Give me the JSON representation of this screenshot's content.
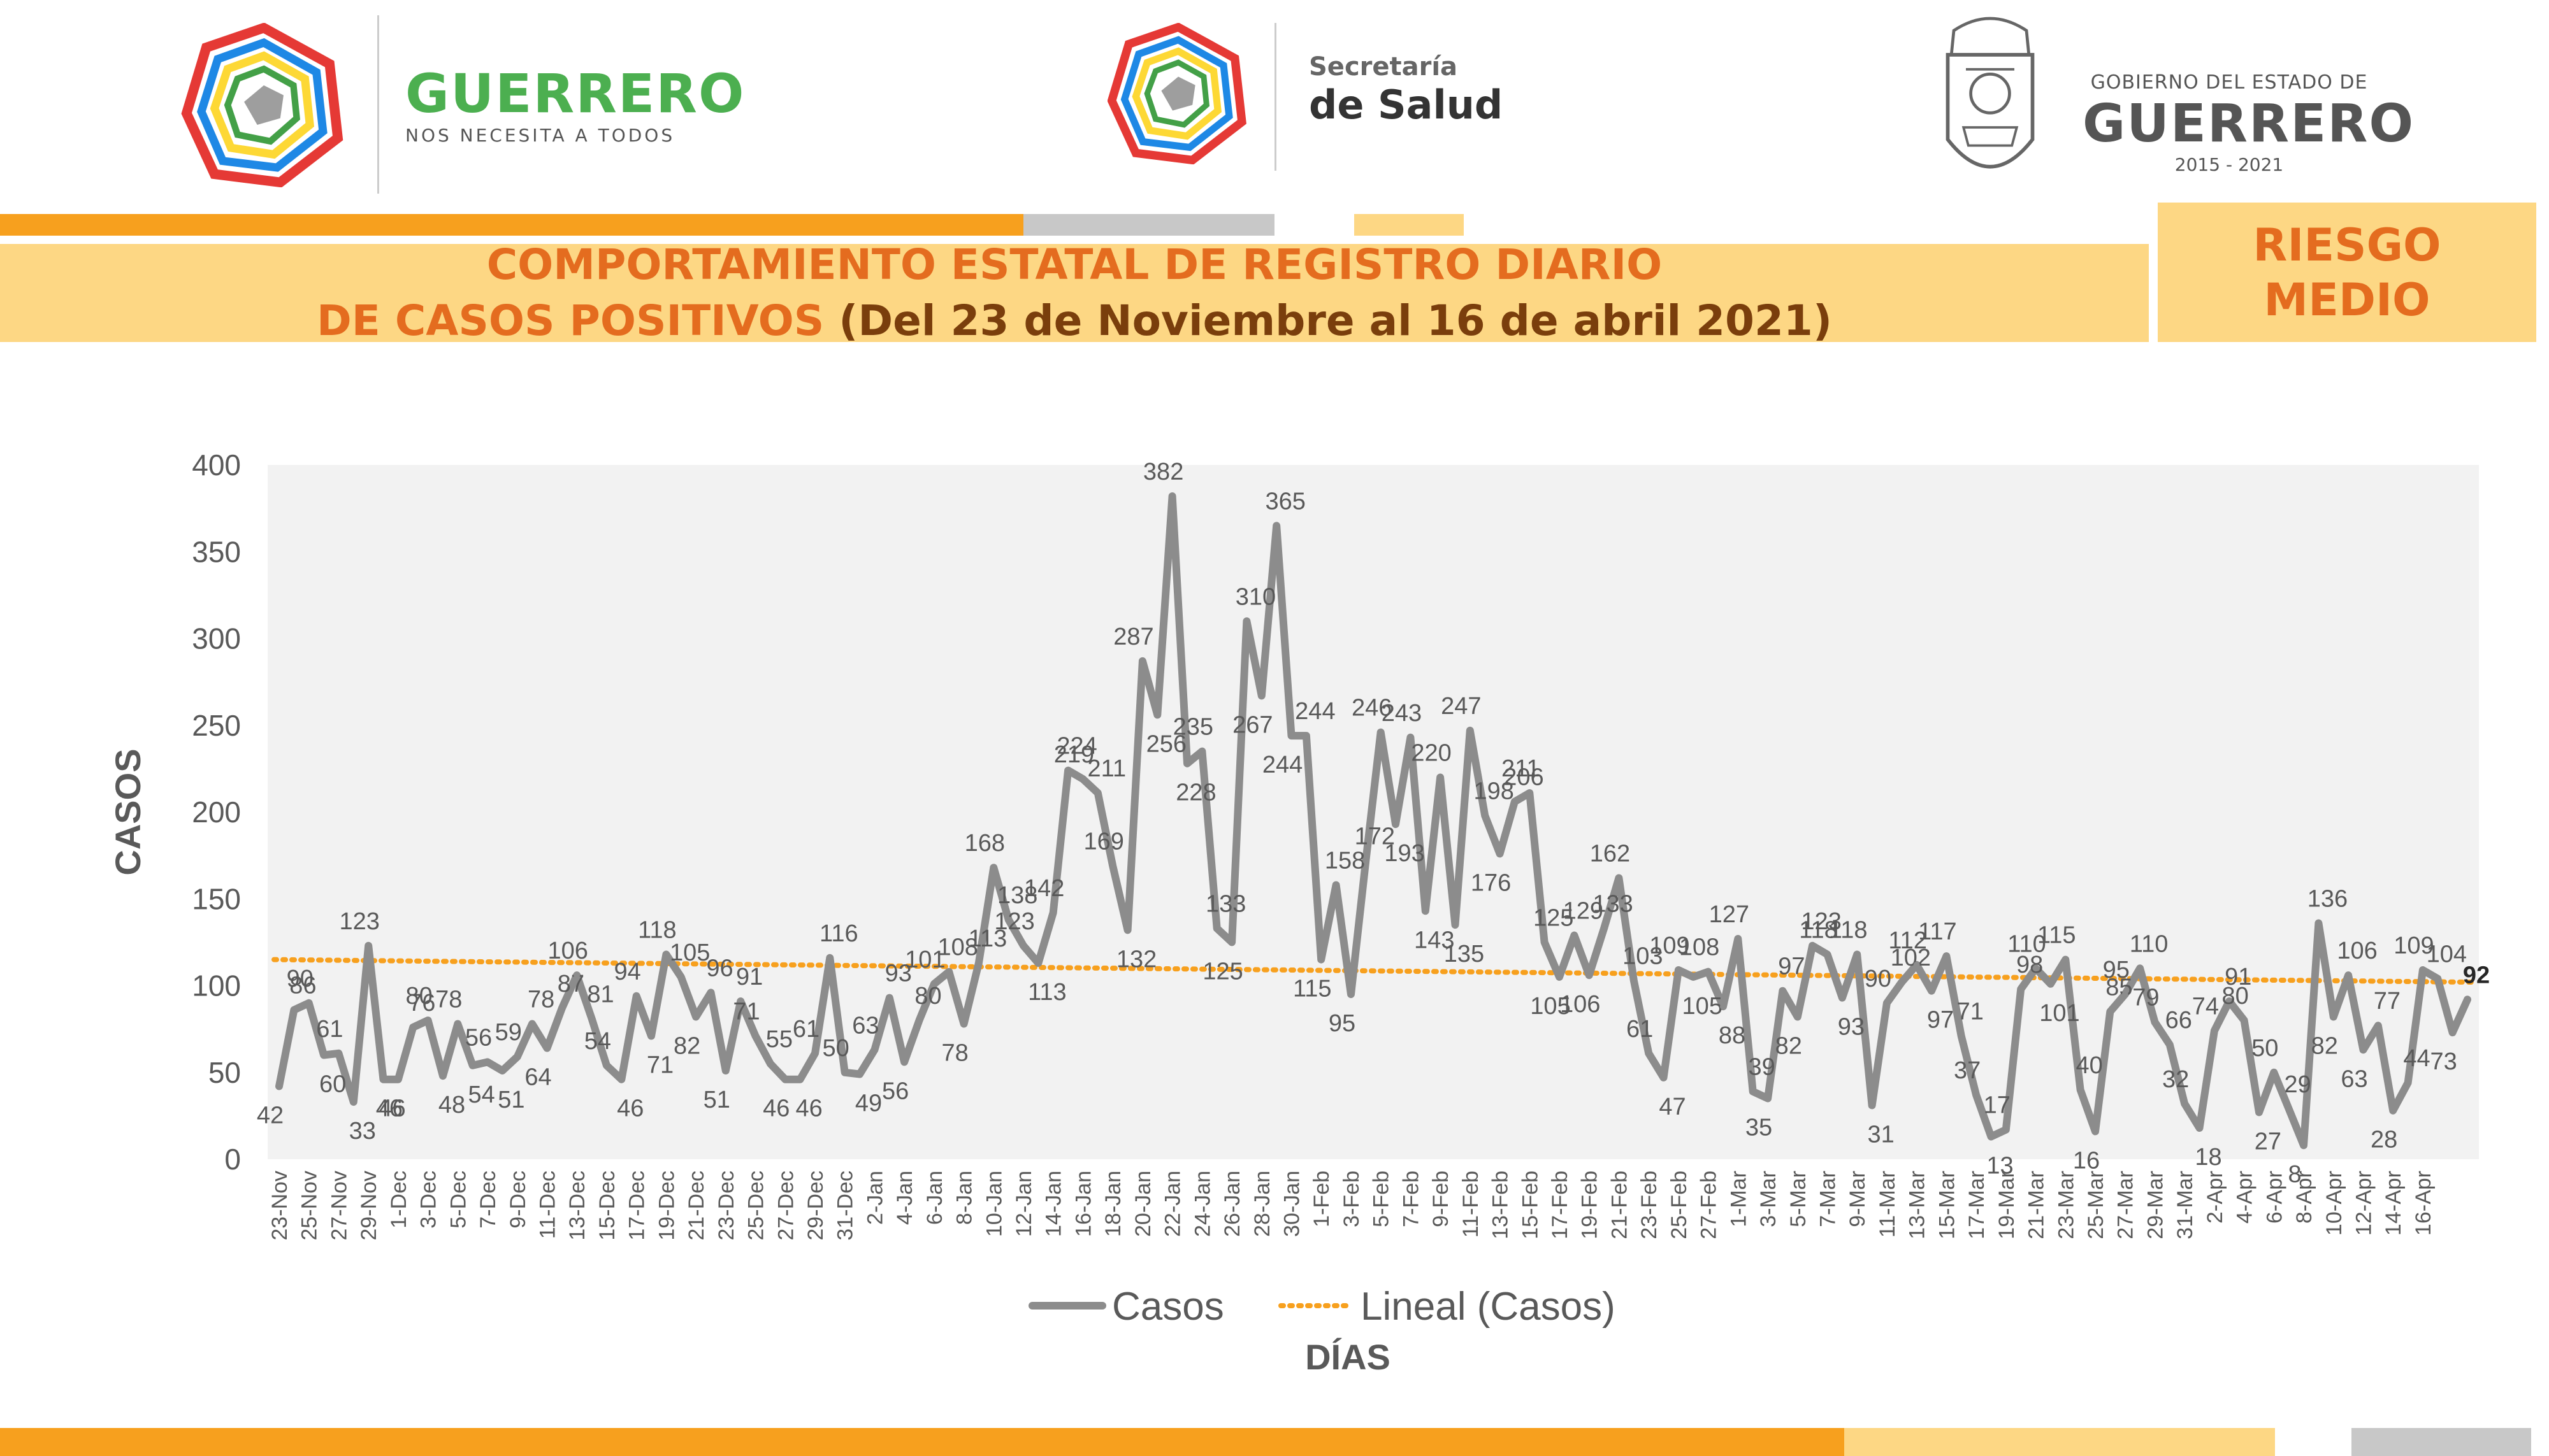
{
  "header": {
    "logo1_line1": "GUERRERO",
    "logo1_line2": "NOS NECESITA A TODOS",
    "logo2_line1": "Secretaría",
    "logo2_line2": "de Salud",
    "logo3_line1": "GOBIERNO DEL ESTADO DE",
    "logo3_line2": "GUERRERO",
    "logo3_line3": "2015 - 2021"
  },
  "title": {
    "line1": "COMPORTAMIENTO ESTATAL DE REGISTRO DIARIO",
    "line2_part1": "DE CASOS POSITIVOS",
    "line2_part2": "(Del 23 de Noviembre al 16 de abril 2021)"
  },
  "risk": {
    "line1": "RIESGO",
    "line2": "MEDIO"
  },
  "colors": {
    "orange": "#F7A01E",
    "title_orange": "#E46C1F",
    "yellow": "#FDD784",
    "line_gray": "#8C8C8C"
  },
  "chart_data": {
    "type": "line",
    "ylabel": "CASOS",
    "xlabel": "DÍAS",
    "ylim": [
      0,
      400
    ],
    "yticks": [
      0,
      50,
      100,
      150,
      200,
      250,
      300,
      350,
      400
    ],
    "legend": [
      "Casos",
      "Lineal (Casos)"
    ],
    "legend_position": "bottom",
    "trend": {
      "name": "Lineal (Casos)",
      "start": 115,
      "end": 102
    },
    "x_tick_labels": [
      "23-Nov",
      "25-Nov",
      "27-Nov",
      "29-Nov",
      "1-Dec",
      "3-Dec",
      "5-Dec",
      "7-Dec",
      "9-Dec",
      "11-Dec",
      "13-Dec",
      "15-Dec",
      "17-Dec",
      "19-Dec",
      "21-Dec",
      "23-Dec",
      "25-Dec",
      "27-Dec",
      "29-Dec",
      "31-Dec",
      "2-Jan",
      "4-Jan",
      "6-Jan",
      "8-Jan",
      "10-Jan",
      "12-Jan",
      "14-Jan",
      "16-Jan",
      "18-Jan",
      "20-Jan",
      "22-Jan",
      "24-Jan",
      "26-Jan",
      "28-Jan",
      "30-Jan",
      "1-Feb",
      "3-Feb",
      "5-Feb",
      "7-Feb",
      "9-Feb",
      "11-Feb",
      "13-Feb",
      "15-Feb",
      "17-Feb",
      "19-Feb",
      "21-Feb",
      "23-Feb",
      "25-Feb",
      "27-Feb",
      "1-Mar",
      "3-Mar",
      "5-Mar",
      "7-Mar",
      "9-Mar",
      "11-Mar",
      "13-Mar",
      "15-Mar",
      "17-Mar",
      "19-Mar",
      "21-Mar",
      "23-Mar",
      "25-Mar",
      "27-Mar",
      "29-Mar",
      "31-Mar",
      "2-Apr",
      "4-Apr",
      "6-Apr",
      "8-Apr",
      "10-Apr",
      "12-Apr",
      "14-Apr",
      "16-Apr"
    ],
    "series": [
      {
        "name": "Casos",
        "values": [
          42,
          86,
          90,
          60,
          61,
          33,
          123,
          46,
          46,
          76,
          80,
          48,
          78,
          54,
          56,
          51,
          59,
          78,
          64,
          87,
          106,
          81,
          54,
          46,
          94,
          71,
          118,
          105,
          82,
          96,
          51,
          91,
          71,
          55,
          46,
          46,
          61,
          116,
          50,
          49,
          63,
          93,
          56,
          80,
          101,
          108,
          78,
          113,
          168,
          138,
          123,
          113,
          142,
          224,
          219,
          211,
          169,
          132,
          287,
          256,
          382,
          228,
          235,
          133,
          125,
          310,
          267,
          365,
          244,
          244,
          115,
          158,
          95,
          172,
          246,
          193,
          243,
          143,
          220,
          135,
          247,
          198,
          176,
          206,
          211,
          125,
          105,
          129,
          106,
          133,
          162,
          103,
          61,
          47,
          109,
          105,
          108,
          88,
          127,
          39,
          35,
          97,
          82,
          123,
          118,
          93,
          118,
          31,
          90,
          102,
          112,
          97,
          117,
          71,
          37,
          13,
          17,
          98,
          110,
          101,
          115,
          40,
          16,
          85,
          95,
          110,
          79,
          66,
          32,
          18,
          74,
          91,
          80,
          27,
          50,
          29,
          8,
          136,
          82,
          106,
          63,
          77,
          28,
          44,
          109,
          104,
          73,
          92
        ]
      }
    ]
  }
}
